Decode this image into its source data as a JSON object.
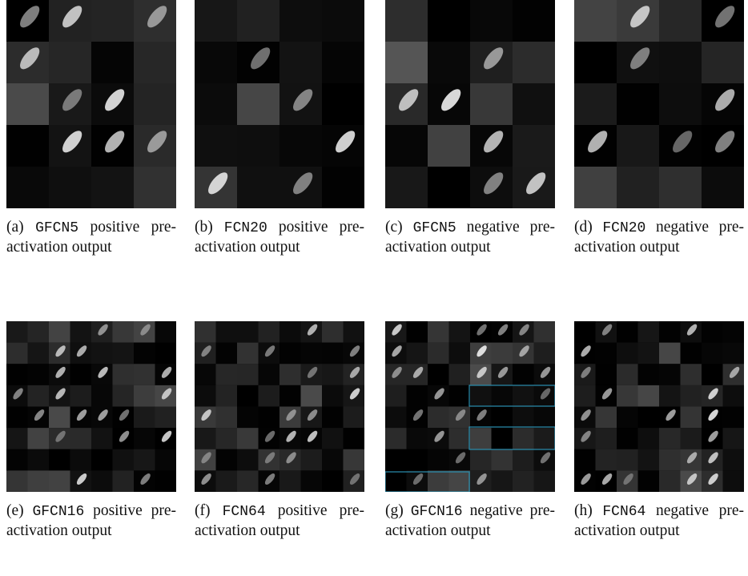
{
  "panels": [
    {
      "label": "(a)",
      "model": "GFCN5",
      "text": "positive pre-activation output"
    },
    {
      "label": "(b)",
      "model": "FCN20",
      "text": "positive pre-activation output"
    },
    {
      "label": "(c)",
      "model": "GFCN5",
      "text": "negative pre-activation output"
    },
    {
      "label": "(d)",
      "model": "FCN20",
      "text": "negative pre-activation output"
    },
    {
      "label": "(e)",
      "model": "GFCN16",
      "text": "positive pre-activation output"
    },
    {
      "label": "(f)",
      "model": "FCN64",
      "text": "positive pre-activation output"
    },
    {
      "label": "(g)",
      "model": "GFCN16",
      "text": "negative pre-activation output"
    },
    {
      "label": "(h)",
      "model": "FCN64",
      "text": "negative pre-activation output"
    }
  ]
}
